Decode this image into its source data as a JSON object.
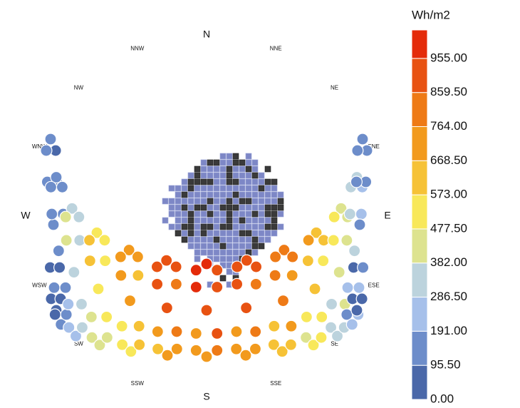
{
  "chart_data": {
    "type": "sunpath",
    "compass": [
      "N",
      "NNE",
      "NE",
      "ENE",
      "E",
      "ESE",
      "SE",
      "SSE",
      "S",
      "SSW",
      "SW",
      "WSW",
      "W",
      "WNW",
      "NW",
      "NNW"
    ],
    "legend": {
      "title": "Wh/m2",
      "lim": [
        0,
        1034.6
      ],
      "ticks": [
        {
          "value": 0,
          "label": "0.00"
        },
        {
          "value": 95.5,
          "label": "95.50"
        },
        {
          "value": 191,
          "label": "191.00"
        },
        {
          "value": 286.5,
          "label": "286.50"
        },
        {
          "value": 382,
          "label": "382.00"
        },
        {
          "value": 477.5,
          "label": "477.50"
        },
        {
          "value": 573,
          "label": "573.00"
        },
        {
          "value": 668.5,
          "label": "668.50"
        },
        {
          "value": 764,
          "label": "764.00"
        },
        {
          "value": 859.5,
          "label": "859.50"
        },
        {
          "value": 955,
          "label": "955.00"
        }
      ],
      "colors": [
        "#4a68a9",
        "#6d8dca",
        "#a6c0ea",
        "#bcd3dd",
        "#dde38f",
        "#f8e85a",
        "#f6c236",
        "#f29a1d",
        "#ee7a16",
        "#e85212",
        "#e42b0a"
      ]
    },
    "series": [
      {
        "values": [
          110,
          95,
          80,
          60,
          50,
          45,
          50,
          60,
          85,
          100,
          115,
          120
        ]
      },
      {
        "values": [
          160,
          150,
          130,
          110,
          100,
          95,
          100,
          115,
          140,
          160,
          170,
          175
        ]
      },
      {
        "values": [
          380,
          360,
          320,
          290,
          270,
          260,
          270,
          290,
          330,
          370,
          390,
          400
        ]
      },
      {
        "values": [
          560,
          540,
          500,
          460,
          430,
          410,
          420,
          450,
          500,
          550,
          580,
          590
        ]
      },
      {
        "values": [
          720,
          700,
          650,
          600,
          560,
          540,
          550,
          590,
          650,
          710,
          740,
          750
        ]
      },
      {
        "values": [
          880,
          860,
          800,
          740,
          690,
          660,
          680,
          730,
          800,
          860,
          900,
          910
        ]
      },
      {
        "values": [
          960,
          930,
          870,
          800,
          750,
          720,
          740,
          790,
          870,
          940,
          980,
          990
        ]
      },
      {
        "values": [
          920,
          900,
          840,
          770,
          720,
          700,
          710,
          760,
          840,
          910,
          940,
          950
        ]
      },
      {
        "values": [
          800,
          780,
          720,
          660,
          620,
          600,
          610,
          650,
          720,
          790,
          820,
          830
        ]
      },
      {
        "values": [
          640,
          620,
          570,
          520,
          490,
          470,
          480,
          510,
          570,
          630,
          660,
          670
        ]
      },
      {
        "values": [
          470,
          450,
          410,
          370,
          340,
          330,
          340,
          370,
          410,
          460,
          480,
          490
        ]
      },
      {
        "values": [
          300,
          280,
          250,
          220,
          200,
          190,
          200,
          220,
          250,
          290,
          310,
          320
        ]
      },
      {
        "values": [
          140,
          130,
          110,
          90,
          80,
          75,
          80,
          90,
          110,
          130,
          145,
          150
        ]
      }
    ]
  }
}
